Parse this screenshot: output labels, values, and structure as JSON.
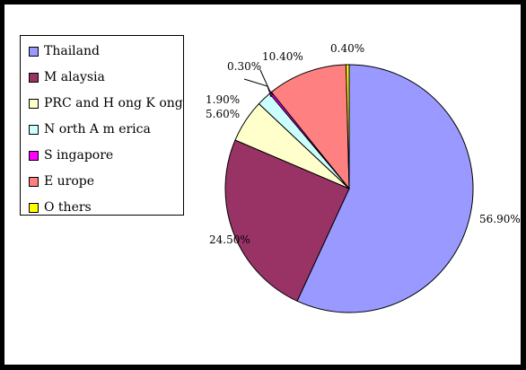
{
  "chart_data": {
    "type": "pie",
    "title": "",
    "start_angle_deg": 90,
    "direction": "clockwise",
    "legend_placement": "left",
    "slices": [
      {
        "label": "Thailand",
        "value": 56.9,
        "value_label": "56.90%",
        "color": "#9999FF"
      },
      {
        "label": "M alaysia",
        "value": 24.5,
        "value_label": "24.50%",
        "color": "#993366"
      },
      {
        "label": "PRC and H ong K ong",
        "value": 5.6,
        "value_label": "5.60%",
        "color": "#FFFFCC"
      },
      {
        "label": "N orth A m erica",
        "value": 1.9,
        "value_label": "1.90%",
        "color": "#CCFFFF"
      },
      {
        "label": "S ingapore",
        "value": 0.3,
        "value_label": "0.30%",
        "color": "#FF00FF"
      },
      {
        "label": "E urope",
        "value": 10.4,
        "value_label": "10.40%",
        "color": "#FF8080"
      },
      {
        "label": "O thers",
        "value": 0.4,
        "value_label": "0.40%",
        "color": "#FFFF00"
      }
    ]
  }
}
